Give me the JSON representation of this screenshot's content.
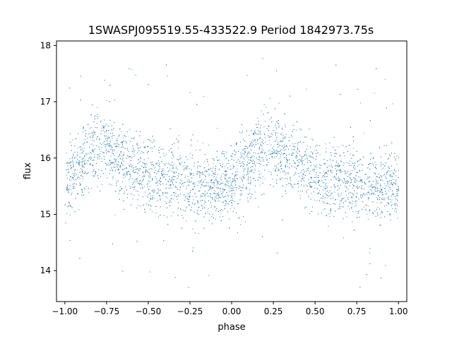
{
  "chart_data": {
    "type": "scatter",
    "title": "1SWASPJ095519.55-433522.9 Period 1842973.75s",
    "xlabel": "phase",
    "ylabel": "flux",
    "xlim": [
      -1.05,
      1.05
    ],
    "ylim": [
      13.45,
      18.08
    ],
    "x_ticks": [
      -1.0,
      -0.75,
      -0.5,
      -0.25,
      0.0,
      0.25,
      0.5,
      0.75,
      1.0
    ],
    "x_tick_labels": [
      "−1.00",
      "−0.75",
      "−0.50",
      "−0.25",
      "0.00",
      "0.25",
      "0.50",
      "0.75",
      "1.00"
    ],
    "y_ticks": [
      14,
      15,
      16,
      17,
      18
    ],
    "y_tick_labels": [
      "14",
      "15",
      "16",
      "17",
      "18"
    ],
    "grid": false,
    "color": "#1f77b4",
    "profile": {
      "phase": [
        0.0,
        0.05,
        0.1,
        0.15,
        0.2,
        0.25,
        0.3,
        0.35,
        0.4,
        0.45,
        0.5,
        0.55,
        0.6,
        0.65,
        0.7,
        0.75,
        0.8,
        0.85,
        0.9,
        0.95,
        1.0
      ],
      "median_flux": [
        15.5,
        15.7,
        15.9,
        16.1,
        16.25,
        16.2,
        16.05,
        15.95,
        15.85,
        15.8,
        15.7,
        15.65,
        15.6,
        15.65,
        15.6,
        15.55,
        15.5,
        15.55,
        15.5,
        15.55,
        15.5
      ]
    }
  }
}
